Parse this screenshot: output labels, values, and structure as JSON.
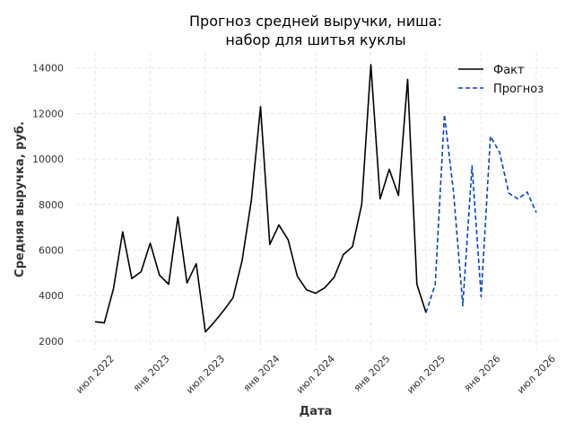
{
  "chart_data": {
    "type": "line",
    "title_line1": "Прогноз средней выручки, ниша:",
    "title_line2": "набор для шитья куклы",
    "xlabel": "Дата",
    "ylabel": "Средняя выручка, руб.",
    "ylim": [
      1600,
      14700
    ],
    "y_ticks": [
      2000,
      4000,
      6000,
      8000,
      10000,
      12000,
      14000
    ],
    "y_tick_labels": [
      "2000",
      "4000",
      "6000",
      "8000",
      "10000",
      "12000",
      "14000"
    ],
    "x_ticks": [
      "2022-07",
      "2023-01",
      "2023-07",
      "2024-01",
      "2024-07",
      "2025-01",
      "2025-07",
      "2026-01",
      "2026-07"
    ],
    "x_tick_labels": [
      "июл 2022",
      "янв 2023",
      "июл 2023",
      "янв 2024",
      "июл 2024",
      "янв 2025",
      "июл 2025",
      "янв 2026",
      "июл 2026"
    ],
    "grid": true,
    "legend_position": "top-right",
    "series": [
      {
        "name": "Факт",
        "color": "#000000",
        "style": "solid",
        "x": [
          "2022-07",
          "2022-08",
          "2022-09",
          "2022-10",
          "2022-11",
          "2022-12",
          "2023-01",
          "2023-02",
          "2023-03",
          "2023-04",
          "2023-05",
          "2023-06",
          "2023-07",
          "2023-08",
          "2023-09",
          "2023-10",
          "2023-11",
          "2023-12",
          "2024-01",
          "2024-02",
          "2024-03",
          "2024-04",
          "2024-05",
          "2024-06",
          "2024-07",
          "2024-08",
          "2024-09",
          "2024-10",
          "2024-11",
          "2024-12",
          "2025-01",
          "2025-02",
          "2025-03",
          "2025-04",
          "2025-05",
          "2025-06",
          "2025-07"
        ],
        "values": [
          2850,
          2800,
          4300,
          6800,
          4750,
          5050,
          6300,
          4900,
          4500,
          7450,
          4550,
          5400,
          2400,
          2850,
          3350,
          3900,
          5550,
          8200,
          12300,
          6250,
          7100,
          6450,
          4850,
          4250,
          4100,
          4350,
          4800,
          5800,
          6150,
          8000,
          14150,
          8250,
          9550,
          8400,
          13500,
          4500,
          3250
        ]
      },
      {
        "name": "Прогноз",
        "color": "#0044cc",
        "style": "dashed",
        "x": [
          "2025-07",
          "2025-08",
          "2025-09",
          "2025-10",
          "2025-11",
          "2025-12",
          "2026-01",
          "2026-02",
          "2026-03",
          "2026-04",
          "2026-05",
          "2026-06",
          "2026-07"
        ],
        "values": [
          3250,
          4500,
          11950,
          8500,
          3550,
          9700,
          3950,
          11000,
          10300,
          8500,
          8250,
          8550,
          7650
        ]
      }
    ]
  }
}
